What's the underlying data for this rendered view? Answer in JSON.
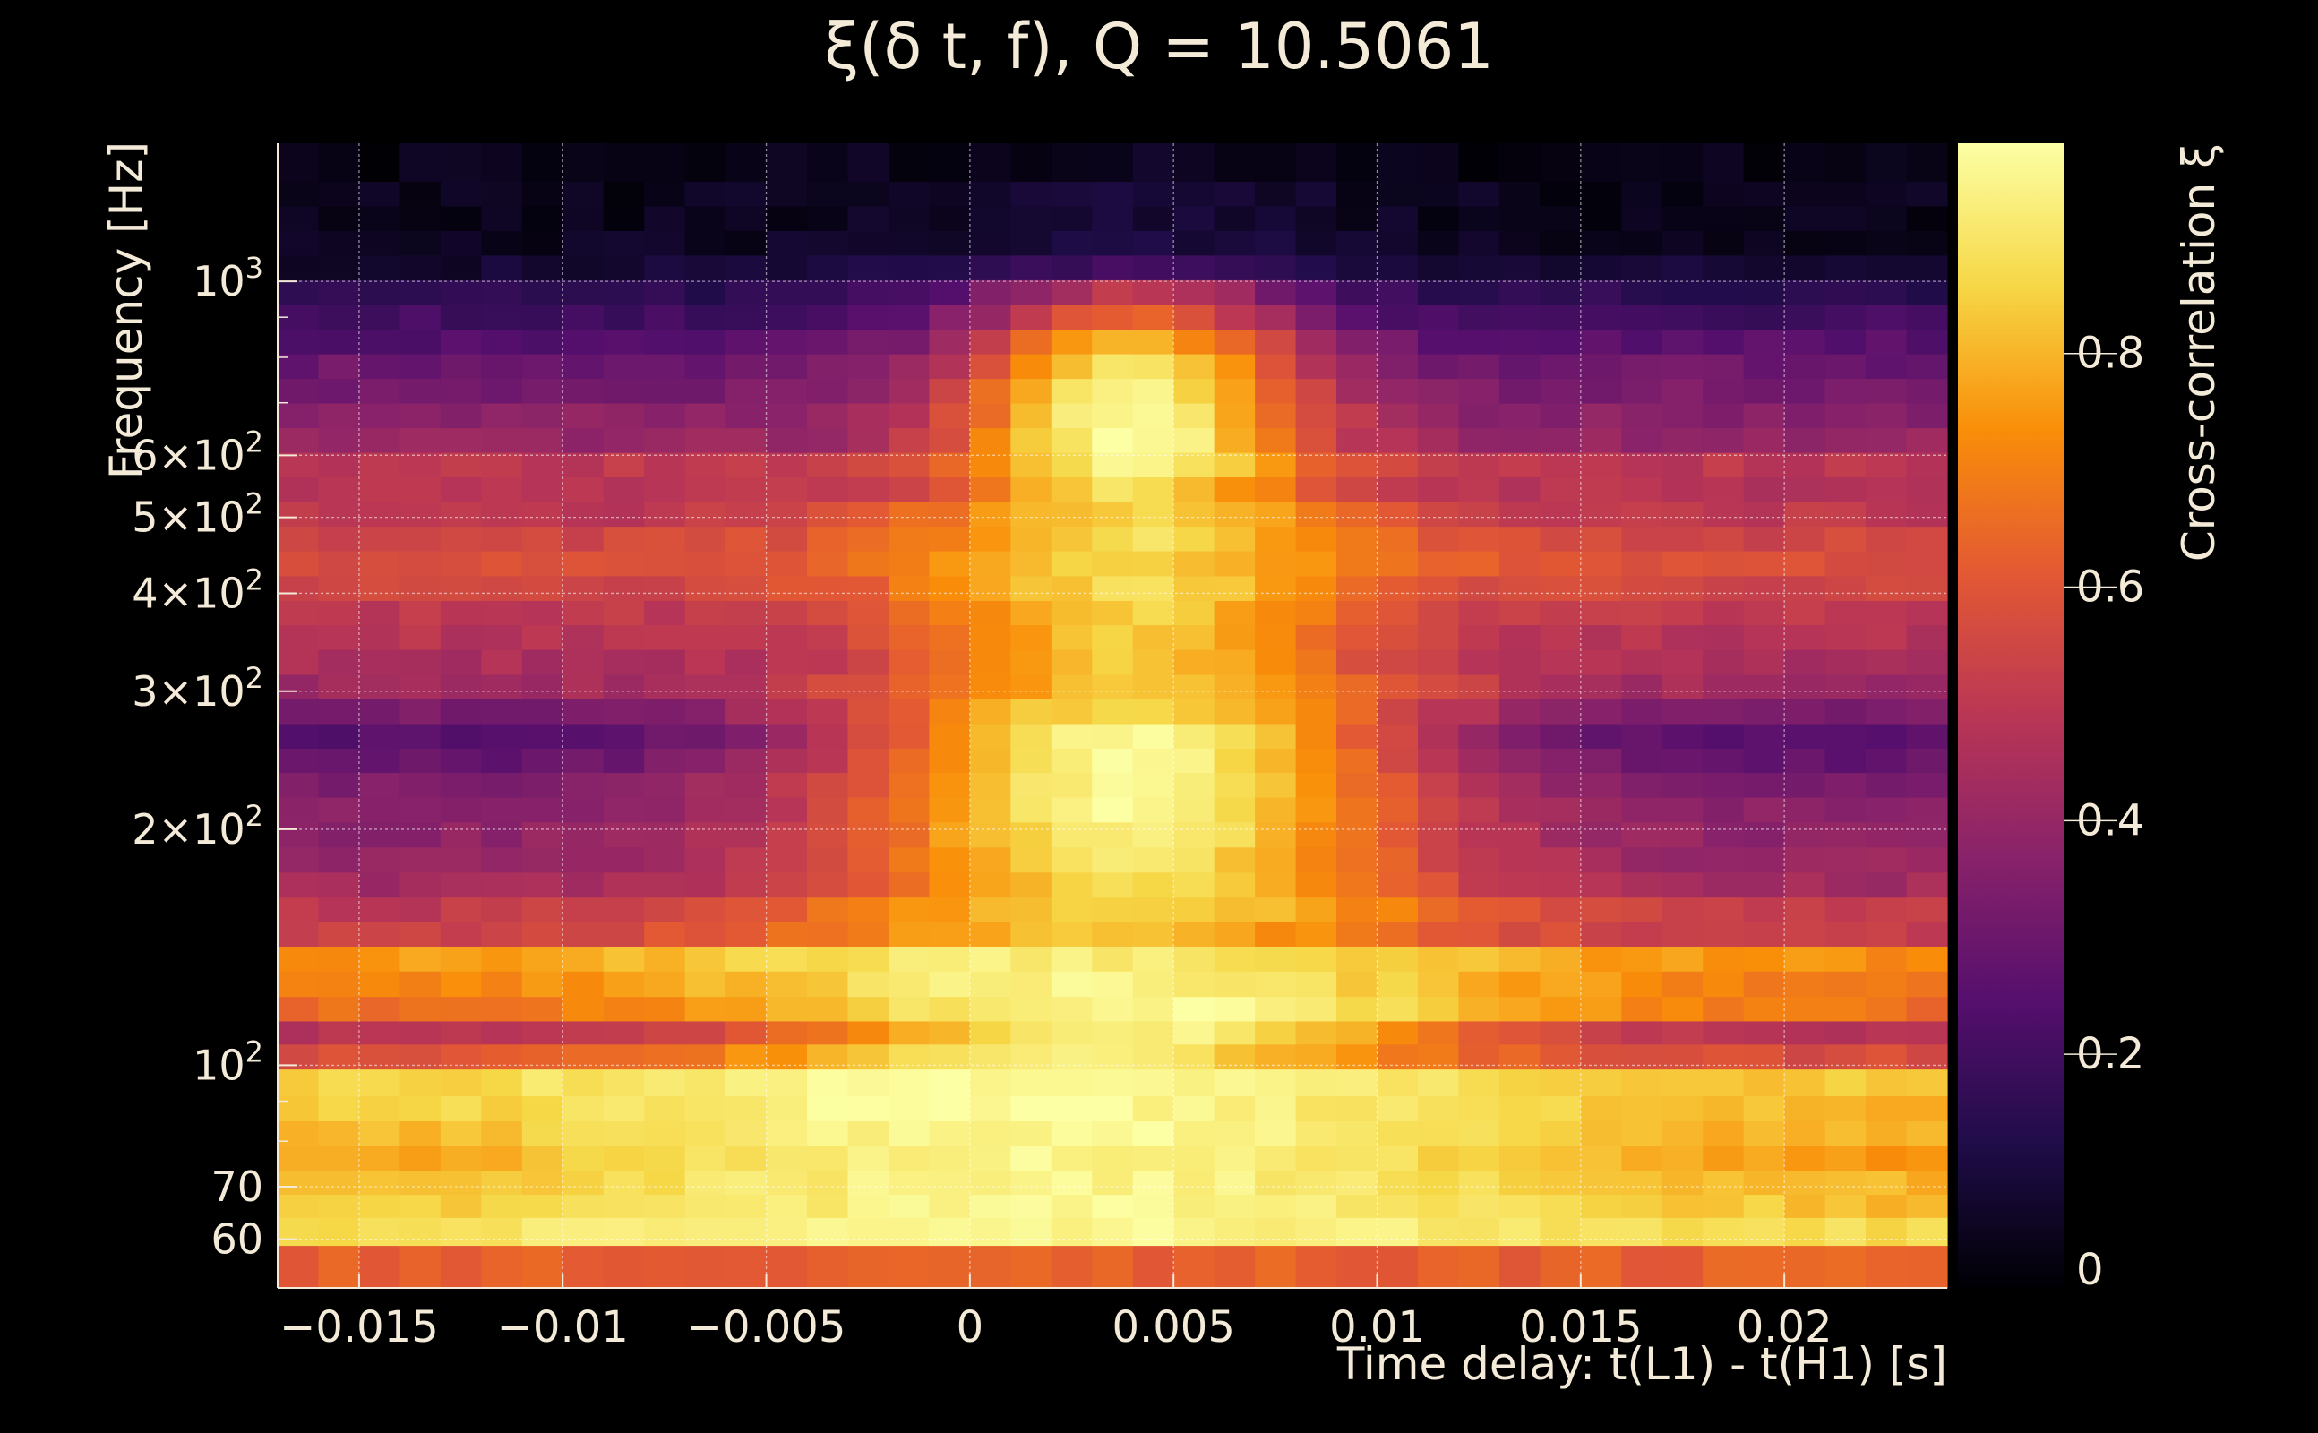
{
  "chart_data": {
    "type": "heatmap",
    "title": "ξ(δ t, f), Q = 10.5061",
    "xlabel": "Time delay: t(L1) - t(H1) [s]",
    "ylabel": "Frequency [Hz]",
    "colorbar_label": "Cross-correlation ξ",
    "colormap": "inferno",
    "colors": [
      "#000004",
      "#1f0c48",
      "#550f6d",
      "#88226a",
      "#ba3655",
      "#e35933",
      "#f98e09",
      "#f6d746",
      "#fcffa4"
    ],
    "xlim": [
      -0.017,
      0.024
    ],
    "ylim": [
      52,
      1500
    ],
    "y_scale": "log",
    "clim": [
      0,
      0.98
    ],
    "x_ticks": [
      -0.015,
      -0.01,
      -0.005,
      0,
      0.005,
      0.01,
      0.015,
      0.02
    ],
    "x_tick_labels": [
      "−0.015",
      "−0.01",
      "−0.005",
      "0",
      "0.005",
      "0.01",
      "0.015",
      "0.02"
    ],
    "y_ticks": [
      {
        "value": 60,
        "base": "60",
        "exp": ""
      },
      {
        "value": 70,
        "base": "70",
        "exp": ""
      },
      {
        "value": 100,
        "base": "10",
        "exp": "2"
      },
      {
        "value": 200,
        "base": "2×10",
        "exp": "2"
      },
      {
        "value": 300,
        "base": "3×10",
        "exp": "2"
      },
      {
        "value": 400,
        "base": "4×10",
        "exp": "2"
      },
      {
        "value": 500,
        "base": "5×10",
        "exp": "2"
      },
      {
        "value": 600,
        "base": "6×10",
        "exp": "2"
      },
      {
        "value": 1000,
        "base": "10",
        "exp": "3"
      }
    ],
    "colorbar_ticks": [
      0,
      0.2,
      0.4,
      0.6,
      0.8
    ],
    "colorbar_tick_labels": [
      "0",
      "0.2",
      "0.4",
      "0.6",
      "0.8"
    ],
    "grid": true,
    "freq_bins": [
      56,
      62,
      66,
      71,
      76,
      82,
      88,
      95,
      103,
      110,
      118,
      127,
      137,
      147,
      158,
      170,
      183,
      197,
      212,
      228,
      245,
      263,
      283,
      304,
      327,
      352,
      378,
      406,
      437,
      470,
      505,
      543,
      584,
      627,
      675,
      725,
      780,
      838,
      901,
      969,
      1042,
      1120,
      1204,
      1294,
      1391
    ],
    "rows": [
      {
        "f": 56,
        "base": 0.63,
        "peak": 0.0,
        "t0": 0.004,
        "w": 0.01
      },
      {
        "f": 62,
        "base": 0.86,
        "peak": 0.1,
        "t0": 0.002,
        "w": 0.01
      },
      {
        "f": 66,
        "base": 0.8,
        "peak": 0.15,
        "t0": 0.002,
        "w": 0.01
      },
      {
        "f": 71,
        "base": 0.78,
        "peak": 0.17,
        "t0": 0.002,
        "w": 0.009
      },
      {
        "f": 76,
        "base": 0.74,
        "peak": 0.21,
        "t0": 0.002,
        "w": 0.009
      },
      {
        "f": 82,
        "base": 0.77,
        "peak": 0.19,
        "t0": 0.002,
        "w": 0.009
      },
      {
        "f": 88,
        "base": 0.8,
        "peak": 0.17,
        "t0": 0.001,
        "w": 0.009
      },
      {
        "f": 95,
        "base": 0.82,
        "peak": 0.15,
        "t0": 0.001,
        "w": 0.009
      },
      {
        "f": 103,
        "base": 0.57,
        "peak": 0.35,
        "t0": 0.002,
        "w": 0.006
      },
      {
        "f": 110,
        "base": 0.47,
        "peak": 0.47,
        "t0": 0.004,
        "w": 0.006
      },
      {
        "f": 118,
        "base": 0.66,
        "peak": 0.3,
        "t0": 0.004,
        "w": 0.007
      },
      {
        "f": 127,
        "base": 0.69,
        "peak": 0.26,
        "t0": 0.003,
        "w": 0.007
      },
      {
        "f": 137,
        "base": 0.72,
        "peak": 0.2,
        "t0": 0.002,
        "w": 0.008
      },
      {
        "f": 147,
        "base": 0.52,
        "peak": 0.3,
        "t0": 0.003,
        "w": 0.006
      },
      {
        "f": 158,
        "base": 0.5,
        "peak": 0.35,
        "t0": 0.004,
        "w": 0.006
      },
      {
        "f": 170,
        "base": 0.43,
        "peak": 0.45,
        "t0": 0.004,
        "w": 0.005
      },
      {
        "f": 183,
        "base": 0.4,
        "peak": 0.5,
        "t0": 0.004,
        "w": 0.005
      },
      {
        "f": 197,
        "base": 0.38,
        "peak": 0.55,
        "t0": 0.004,
        "w": 0.005
      },
      {
        "f": 212,
        "base": 0.36,
        "peak": 0.6,
        "t0": 0.004,
        "w": 0.005
      },
      {
        "f": 228,
        "base": 0.34,
        "peak": 0.62,
        "t0": 0.004,
        "w": 0.005
      },
      {
        "f": 245,
        "base": 0.28,
        "peak": 0.68,
        "t0": 0.004,
        "w": 0.005
      },
      {
        "f": 263,
        "base": 0.25,
        "peak": 0.7,
        "t0": 0.004,
        "w": 0.005
      },
      {
        "f": 283,
        "base": 0.33,
        "peak": 0.55,
        "t0": 0.004,
        "w": 0.005
      },
      {
        "f": 304,
        "base": 0.42,
        "peak": 0.4,
        "t0": 0.004,
        "w": 0.005
      },
      {
        "f": 327,
        "base": 0.45,
        "peak": 0.38,
        "t0": 0.004,
        "w": 0.004
      },
      {
        "f": 352,
        "base": 0.48,
        "peak": 0.35,
        "t0": 0.004,
        "w": 0.004
      },
      {
        "f": 378,
        "base": 0.5,
        "peak": 0.35,
        "t0": 0.004,
        "w": 0.004
      },
      {
        "f": 406,
        "base": 0.55,
        "peak": 0.32,
        "t0": 0.004,
        "w": 0.004
      },
      {
        "f": 437,
        "base": 0.58,
        "peak": 0.28,
        "t0": 0.004,
        "w": 0.004
      },
      {
        "f": 470,
        "base": 0.55,
        "peak": 0.33,
        "t0": 0.004,
        "w": 0.004
      },
      {
        "f": 505,
        "base": 0.5,
        "peak": 0.36,
        "t0": 0.004,
        "w": 0.004
      },
      {
        "f": 543,
        "base": 0.48,
        "peak": 0.4,
        "t0": 0.004,
        "w": 0.003
      },
      {
        "f": 584,
        "base": 0.5,
        "peak": 0.45,
        "t0": 0.004,
        "w": 0.003
      },
      {
        "f": 627,
        "base": 0.4,
        "peak": 0.58,
        "t0": 0.004,
        "w": 0.003
      },
      {
        "f": 675,
        "base": 0.37,
        "peak": 0.6,
        "t0": 0.004,
        "w": 0.003
      },
      {
        "f": 725,
        "base": 0.33,
        "peak": 0.62,
        "t0": 0.004,
        "w": 0.003
      },
      {
        "f": 780,
        "base": 0.3,
        "peak": 0.6,
        "t0": 0.004,
        "w": 0.003
      },
      {
        "f": 838,
        "base": 0.25,
        "peak": 0.55,
        "t0": 0.004,
        "w": 0.003
      },
      {
        "f": 901,
        "base": 0.2,
        "peak": 0.45,
        "t0": 0.004,
        "w": 0.003
      },
      {
        "f": 969,
        "base": 0.15,
        "peak": 0.35,
        "t0": 0.004,
        "w": 0.003
      },
      {
        "f": 1042,
        "base": 0.08,
        "peak": 0.12,
        "t0": 0.004,
        "w": 0.004
      },
      {
        "f": 1120,
        "base": 0.05,
        "peak": 0.05,
        "t0": 0.004,
        "w": 0.004
      },
      {
        "f": 1204,
        "base": 0.04,
        "peak": 0.04,
        "t0": 0.004,
        "w": 0.004
      },
      {
        "f": 1294,
        "base": 0.04,
        "peak": 0.04,
        "t0": 0.004,
        "w": 0.004
      },
      {
        "f": 1391,
        "base": 0.03,
        "peak": 0.03,
        "t0": 0.004,
        "w": 0.004
      }
    ]
  }
}
